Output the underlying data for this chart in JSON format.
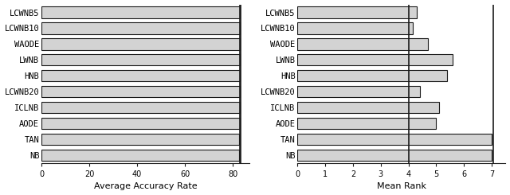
{
  "categories": [
    "LCWNB5",
    "LCWNB10",
    "WAODE",
    "LWNB",
    "HNB",
    "LCWNB20",
    "ICLNB",
    "AODE",
    "TAN",
    "NB"
  ],
  "accuracy_values": [
    83.05,
    83.05,
    83.05,
    83.05,
    82.9,
    83.0,
    82.85,
    82.9,
    82.75,
    82.65
  ],
  "accuracy_refline1": 83.05,
  "accuracy_refline2": 83.3,
  "accuracy_xlim": [
    0,
    87
  ],
  "accuracy_xticks": [
    0,
    20,
    40,
    60,
    80
  ],
  "accuracy_xlabel": "Average Accuracy Rate",
  "rank_values": [
    4.3,
    4.15,
    4.7,
    5.6,
    5.4,
    4.4,
    5.1,
    5.0,
    7.0,
    7.0
  ],
  "rank_refline1": 4.0,
  "rank_refline2": 7.05,
  "rank_xlim": [
    0,
    7.5
  ],
  "rank_xticks": [
    0,
    1,
    2,
    3,
    4,
    5,
    6,
    7
  ],
  "rank_xlabel": "Mean Rank",
  "bar_color": "#d3d3d3",
  "bar_edgecolor": "#1a1a1a",
  "refline_color": "#1a1a1a",
  "background_color": "#ffffff",
  "bar_height": 0.72,
  "label_fontsize": 7.5,
  "tick_fontsize": 7,
  "xlabel_fontsize": 8
}
